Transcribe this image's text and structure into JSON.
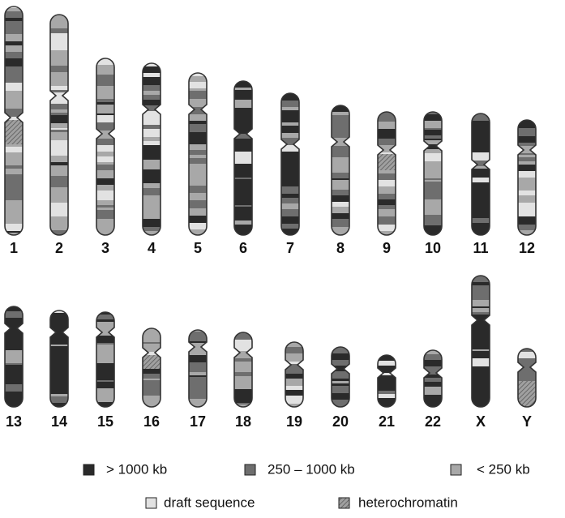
{
  "chromosomes": [
    "1",
    "2",
    "3",
    "4",
    "5",
    "6",
    "7",
    "8",
    "9",
    "10",
    "11",
    "12",
    "13",
    "14",
    "15",
    "16",
    "17",
    "18",
    "19",
    "20",
    "21",
    "22",
    "X",
    "Y"
  ],
  "legend": [
    "> 1000 kb",
    "250 – 1000 kb",
    "< 250 kb",
    "draft sequence",
    "heterochromatin"
  ]
}
